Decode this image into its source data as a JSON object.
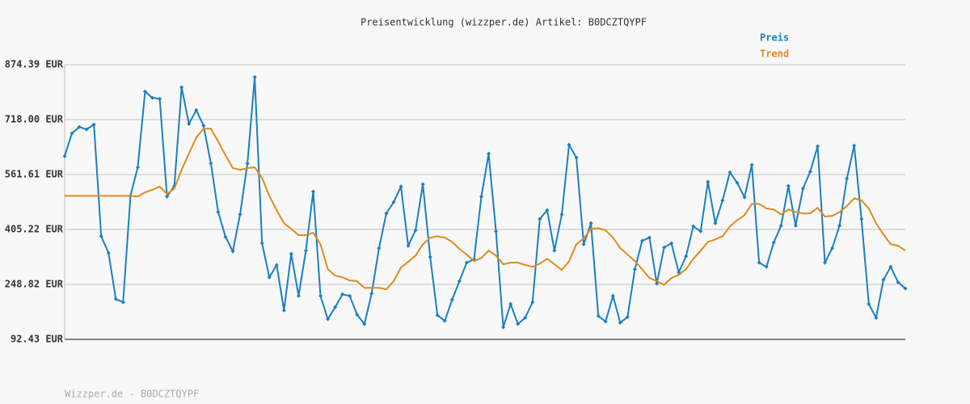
{
  "chart_data": {
    "type": "line",
    "title": "Preisentwicklung (wizzper.de) Artikel: B0DCZTQYPF",
    "footer": "Wizzper.de - B0DCZTQYPF",
    "ylim": [
      92.43,
      874.39
    ],
    "yticks": [
      {
        "value": 92.43,
        "label": "92.43 EUR"
      },
      {
        "value": 248.82,
        "label": "248.82 EUR"
      },
      {
        "value": 405.22,
        "label": "405.22 EUR"
      },
      {
        "value": 561.61,
        "label": "561.61 EUR"
      },
      {
        "value": 718.0,
        "label": "718.00 EUR"
      },
      {
        "value": 874.39,
        "label": "874.39 EUR"
      }
    ],
    "grid": true,
    "legend": "top-right",
    "series": [
      {
        "name": "Preis",
        "color": "#1b7fc0",
        "markers": true,
        "values": [
          614,
          679,
          697,
          690,
          704,
          386,
          338,
          207,
          198,
          501,
          582,
          798,
          780,
          777,
          499,
          529,
          810,
          706,
          745,
          701,
          593,
          455,
          384,
          343,
          448,
          593,
          839,
          366,
          269,
          304,
          175,
          336,
          216,
          345,
          513,
          216,
          150,
          184,
          221,
          216,
          163,
          136,
          223,
          352,
          451,
          483,
          527,
          359,
          403,
          534,
          327,
          161,
          145,
          205,
          258,
          311,
          320,
          499,
          621,
          400,
          127,
          193,
          136,
          154,
          198,
          435,
          460,
          345,
          448,
          646,
          610,
          363,
          423,
          159,
          143,
          216,
          140,
          156,
          292,
          373,
          382,
          251,
          354,
          366,
          283,
          329,
          414,
          400,
          541,
          423,
          488,
          568,
          538,
          497,
          589,
          311,
          299,
          368,
          416,
          529,
          416,
          522,
          570,
          642,
          311,
          352,
          416,
          550,
          644,
          435,
          193,
          154,
          262,
          299,
          255,
          237
        ]
      },
      {
        "name": "Trend",
        "color": "#e08a1e",
        "markers": false,
        "values": [
          501,
          501,
          501,
          501,
          501,
          501,
          501,
          501,
          501,
          501,
          499,
          511,
          518,
          527,
          506,
          522,
          575,
          621,
          667,
          692,
          692,
          656,
          616,
          580,
          575,
          580,
          582,
          552,
          501,
          460,
          423,
          407,
          389,
          389,
          396,
          363,
          292,
          274,
          269,
          260,
          258,
          239,
          239,
          239,
          235,
          258,
          297,
          313,
          331,
          363,
          382,
          386,
          382,
          370,
          350,
          334,
          315,
          324,
          345,
          331,
          306,
          311,
          311,
          304,
          299,
          308,
          322,
          306,
          290,
          315,
          363,
          380,
          407,
          409,
          403,
          382,
          352,
          334,
          315,
          292,
          267,
          258,
          248,
          267,
          276,
          292,
          322,
          345,
          370,
          377,
          386,
          414,
          432,
          446,
          478,
          478,
          465,
          462,
          448,
          462,
          455,
          451,
          451,
          467,
          442,
          444,
          455,
          472,
          494,
          488,
          465,
          423,
          391,
          363,
          359,
          345
        ]
      }
    ]
  }
}
